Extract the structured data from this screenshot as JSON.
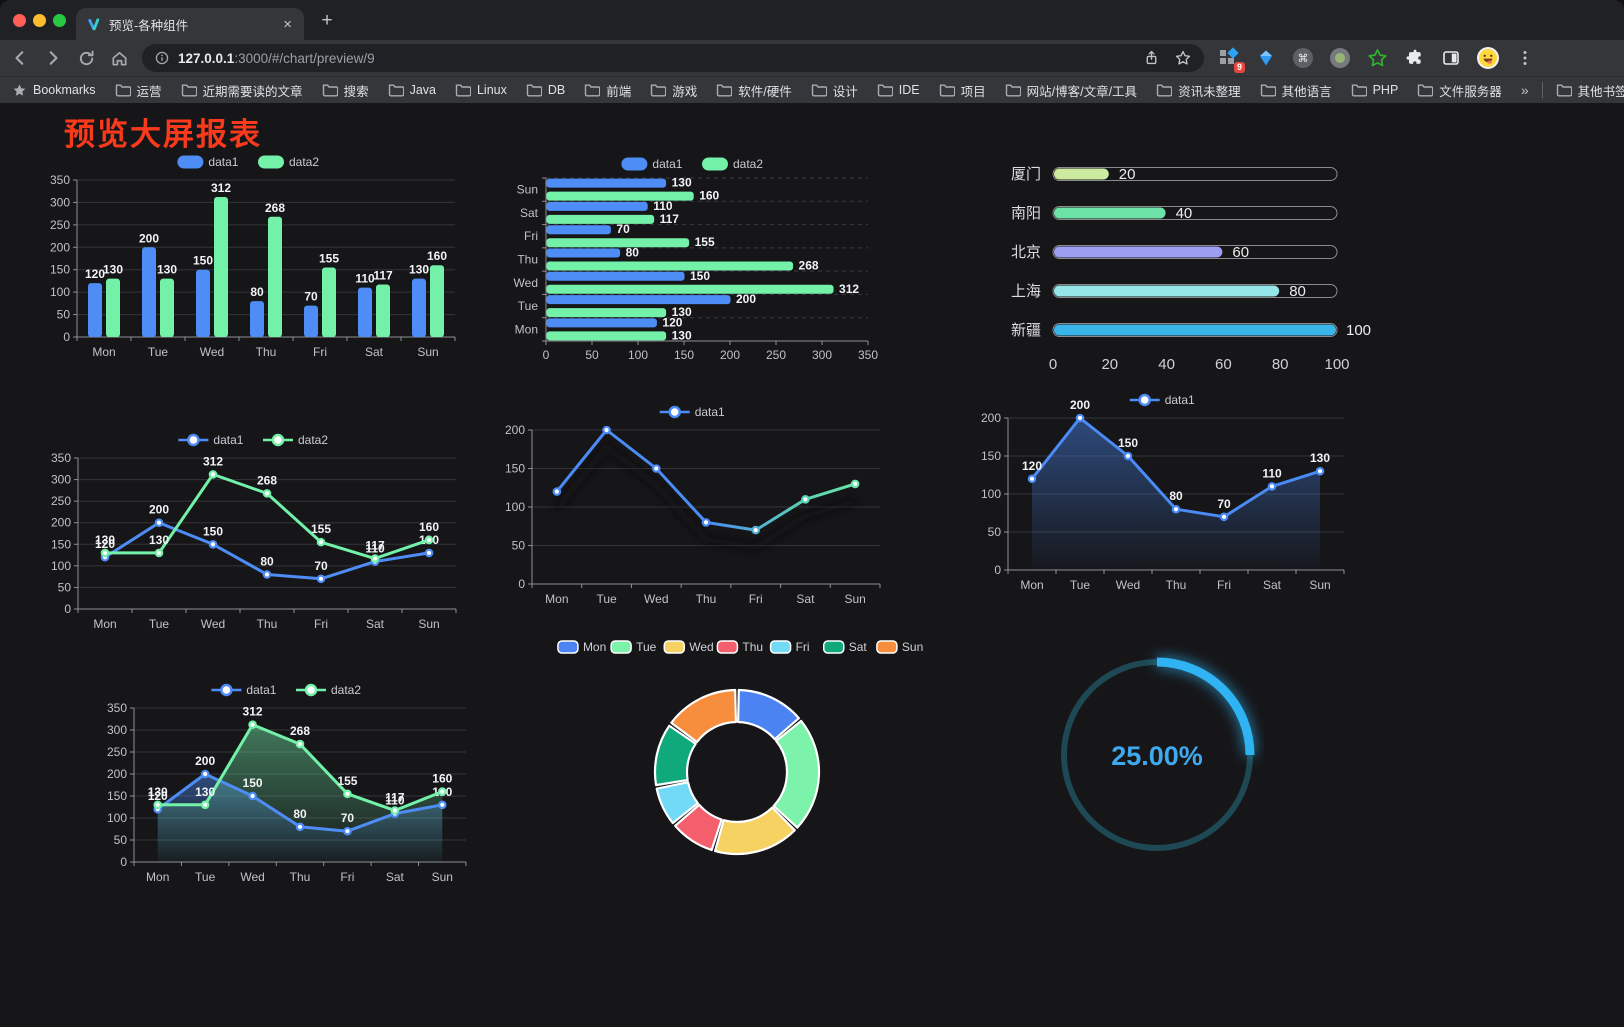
{
  "browser": {
    "tab_title": "预览-各种组件",
    "close_glyph": "×",
    "new_tab_glyph": "+",
    "url_host": "127.0.0.1",
    "url_rest": ":3000/#/chart/preview/9",
    "bookmarks_label": "Bookmarks",
    "bookmark_folders": [
      "运营",
      "近期需要读的文章",
      "搜索",
      "Java",
      "Linux",
      "DB",
      "前端",
      "游戏",
      "软件/硬件",
      "设计",
      "IDE",
      "项目",
      "网站/博客/文章/工具",
      "资讯未整理",
      "其他语言",
      "PHP",
      "文件服务器"
    ],
    "overflow_glyph": "»",
    "other_bookmarks": "其他书签",
    "extension_badge": "9",
    "traffic_lights": {
      "red": "#ff5f57",
      "yellow": "#febc2e",
      "green": "#28c840"
    }
  },
  "page": {
    "title": "预览大屏报表"
  },
  "chart_data": [
    {
      "id": "bar-vertical",
      "type": "bar",
      "categories": [
        "Mon",
        "Tue",
        "Wed",
        "Thu",
        "Fri",
        "Sat",
        "Sun"
      ],
      "series": [
        {
          "name": "data1",
          "color": "#4e8df5",
          "values": [
            120,
            200,
            150,
            80,
            70,
            110,
            130
          ]
        },
        {
          "name": "data2",
          "color": "#73f1a9",
          "values": [
            130,
            130,
            312,
            268,
            155,
            117,
            160
          ]
        }
      ],
      "ylim": [
        0,
        350
      ],
      "ystep": 50,
      "legend": "pill",
      "labels": true
    },
    {
      "id": "bar-horizontal",
      "type": "hbar",
      "categories": [
        "Mon",
        "Tue",
        "Wed",
        "Thu",
        "Fri",
        "Sat",
        "Sun"
      ],
      "series": [
        {
          "name": "data1",
          "color": "#4e8df5",
          "values": [
            120,
            200,
            150,
            80,
            70,
            110,
            130
          ]
        },
        {
          "name": "data2",
          "color": "#73f1a9",
          "values": [
            130,
            130,
            312,
            268,
            155,
            117,
            160
          ]
        }
      ],
      "xlim": [
        0,
        350
      ],
      "xstep": 50,
      "legend": "pill",
      "labels": true
    },
    {
      "id": "progress-bars",
      "type": "progress",
      "max": 100,
      "rows": [
        {
          "label": "厦门",
          "value": 20,
          "color": "#cdeaa1"
        },
        {
          "label": "南阳",
          "value": 40,
          "color": "#6ee3a8"
        },
        {
          "label": "北京",
          "value": 60,
          "color": "#9c9ef1"
        },
        {
          "label": "上海",
          "value": 80,
          "color": "#95e6e8"
        },
        {
          "label": "新疆",
          "value": 100,
          "color": "#3ab5e9"
        }
      ],
      "axis_ticks": [
        0,
        20,
        40,
        60,
        80,
        100
      ]
    },
    {
      "id": "line-multi",
      "type": "line",
      "categories": [
        "Mon",
        "Tue",
        "Wed",
        "Thu",
        "Fri",
        "Sat",
        "Sun"
      ],
      "series": [
        {
          "name": "data1",
          "color": "#4e8df5",
          "values": [
            120,
            200,
            150,
            80,
            70,
            110,
            130
          ]
        },
        {
          "name": "data2",
          "color": "#73f1a9",
          "values": [
            130,
            130,
            312,
            268,
            155,
            117,
            160
          ]
        }
      ],
      "ylim": [
        0,
        350
      ],
      "ystep": 50,
      "legend": "line",
      "labels": true
    },
    {
      "id": "line-gradient",
      "type": "line",
      "categories": [
        "Mon",
        "Tue",
        "Wed",
        "Thu",
        "Fri",
        "Sat",
        "Sun"
      ],
      "series": [
        {
          "name": "data1",
          "color": "#4a8bf5",
          "color_end": "#71f0a7",
          "gradient": true,
          "values": [
            120,
            200,
            150,
            80,
            70,
            110,
            130
          ]
        }
      ],
      "ylim": [
        0,
        200
      ],
      "ystep": 50,
      "legend": "line",
      "labels": false,
      "shadow": true
    },
    {
      "id": "line-area",
      "type": "line",
      "categories": [
        "Mon",
        "Tue",
        "Wed",
        "Thu",
        "Fri",
        "Sat",
        "Sun"
      ],
      "series": [
        {
          "name": "data1",
          "color": "#4a8bf5",
          "area": true,
          "values": [
            120,
            200,
            150,
            80,
            70,
            110,
            130
          ]
        }
      ],
      "ylim": [
        0,
        200
      ],
      "ystep": 50,
      "legend": "line",
      "labels": true
    },
    {
      "id": "line-multi-area",
      "type": "line",
      "categories": [
        "Mon",
        "Tue",
        "Wed",
        "Thu",
        "Fri",
        "Sat",
        "Sun"
      ],
      "series": [
        {
          "name": "data1",
          "color": "#4e8df5",
          "area": true,
          "values": [
            120,
            200,
            150,
            80,
            70,
            110,
            130
          ]
        },
        {
          "name": "data2",
          "color": "#73f1a9",
          "area": true,
          "values": [
            130,
            130,
            312,
            268,
            155,
            117,
            160
          ]
        }
      ],
      "ylim": [
        0,
        350
      ],
      "ystep": 50,
      "legend": "line",
      "labels": true
    },
    {
      "id": "donut",
      "type": "donut",
      "legend": "pill-border",
      "items": [
        {
          "label": "Mon",
          "value": 120,
          "color": "#4b83f3"
        },
        {
          "label": "Tue",
          "value": 200,
          "color": "#7df2ab"
        },
        {
          "label": "Wed",
          "value": 150,
          "color": "#f6d263"
        },
        {
          "label": "Thu",
          "value": 80,
          "color": "#f45f6d"
        },
        {
          "label": "Fri",
          "value": 70,
          "color": "#72d9f7"
        },
        {
          "label": "Sat",
          "value": 110,
          "color": "#0fa97b"
        },
        {
          "label": "Sun",
          "value": 130,
          "color": "#f78e3d"
        }
      ]
    },
    {
      "id": "gauge",
      "type": "gauge",
      "text": "25.00%",
      "percent": 25,
      "arc_color": "#2fb3f2",
      "track_color": "#1d4854",
      "text_color": "#3fa9ee"
    }
  ]
}
